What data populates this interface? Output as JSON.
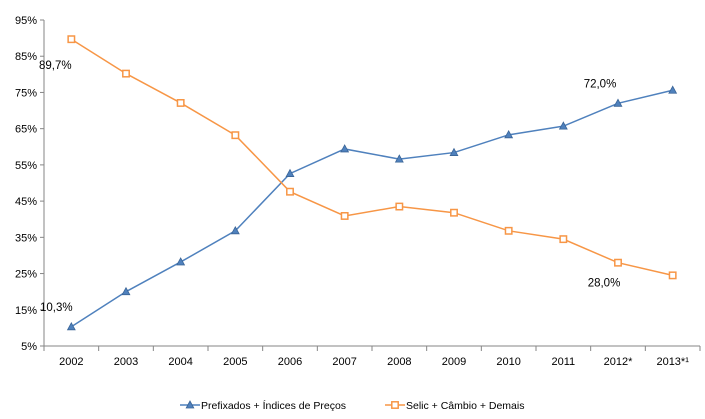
{
  "chart_data": {
    "type": "line",
    "categories": [
      "2002",
      "2003",
      "2004",
      "2005",
      "2006",
      "2007",
      "2008",
      "2009",
      "2010",
      "2011",
      "2012*",
      "2013*¹"
    ],
    "ylim": [
      5,
      95
    ],
    "yticks": [
      "5%",
      "15%",
      "25%",
      "35%",
      "45%",
      "55%",
      "65%",
      "75%",
      "85%",
      "95%"
    ],
    "grid": false,
    "legend_position": "bottom",
    "series": [
      {
        "name": "Prefixados + Índices de Preços",
        "color": "#4F81BD",
        "marker": "triangle",
        "values": [
          10.3,
          20.0,
          28.2,
          36.8,
          52.6,
          59.4,
          56.6,
          58.4,
          63.3,
          65.7,
          72.0,
          75.6
        ]
      },
      {
        "name": "Selic + Câmbio + Demais",
        "color": "#F79646",
        "marker": "square",
        "values": [
          89.7,
          80.2,
          72.1,
          63.2,
          47.6,
          40.9,
          43.5,
          41.8,
          36.8,
          34.5,
          28.0,
          24.5
        ]
      }
    ],
    "annotations": [
      {
        "text": "89,7%",
        "series": 1,
        "point": 0
      },
      {
        "text": "10,3%",
        "series": 0,
        "point": 0
      },
      {
        "text": "72,0%",
        "series": 0,
        "point": 10
      },
      {
        "text": "28,0%",
        "series": 1,
        "point": 10
      }
    ]
  }
}
